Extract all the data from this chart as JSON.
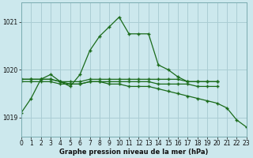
{
  "bg_color": "#cce8ed",
  "grid_color": "#aacdd4",
  "line_color": "#1a6b1a",
  "title": "Graphe pression niveau de la mer (hPa)",
  "xlim": [
    0,
    23
  ],
  "ylim": [
    1018.6,
    1021.4
  ],
  "yticks": [
    1019,
    1020,
    1021
  ],
  "xticks": [
    0,
    1,
    2,
    3,
    4,
    5,
    6,
    7,
    8,
    9,
    10,
    11,
    12,
    13,
    14,
    15,
    16,
    17,
    18,
    19,
    20,
    21,
    22,
    23
  ],
  "series": [
    {
      "x": [
        0,
        1,
        2,
        3,
        4,
        5,
        6,
        7,
        8,
        9,
        10,
        11,
        12,
        13,
        14,
        15,
        16,
        17,
        18,
        19,
        20
      ],
      "y": [
        1019.1,
        1019.4,
        1019.8,
        1019.9,
        1019.75,
        1019.65,
        1019.9,
        1020.4,
        1020.7,
        1020.9,
        1021.1,
        1020.75,
        1020.75,
        1020.75,
        1020.1,
        1020.0,
        1019.85,
        1019.75,
        1019.75,
        1019.75,
        1019.75
      ]
    },
    {
      "x": [
        0,
        1,
        2,
        3,
        4,
        5,
        6,
        7,
        8,
        9,
        10,
        11,
        12,
        13,
        14,
        15,
        16,
        17,
        18,
        19,
        20
      ],
      "y": [
        1019.8,
        1019.8,
        1019.8,
        1019.8,
        1019.75,
        1019.75,
        1019.75,
        1019.8,
        1019.8,
        1019.8,
        1019.8,
        1019.8,
        1019.8,
        1019.8,
        1019.8,
        1019.8,
        1019.8,
        1019.75,
        1019.75,
        1019.75,
        1019.75
      ]
    },
    {
      "x": [
        0,
        1,
        2,
        3,
        4,
        5,
        6,
        7,
        8,
        9,
        10,
        11,
        12,
        13,
        14,
        15,
        16,
        17,
        18,
        19,
        20
      ],
      "y": [
        1019.75,
        1019.75,
        1019.75,
        1019.75,
        1019.7,
        1019.7,
        1019.7,
        1019.75,
        1019.75,
        1019.75,
        1019.75,
        1019.75,
        1019.75,
        1019.75,
        1019.7,
        1019.7,
        1019.7,
        1019.7,
        1019.65,
        1019.65,
        1019.65
      ]
    },
    {
      "x": [
        0,
        1,
        2,
        3,
        4,
        5,
        6,
        7,
        8,
        9,
        10,
        11,
        12,
        13,
        14,
        15,
        16,
        17,
        18,
        19,
        20,
        21,
        22,
        23
      ],
      "y": [
        1019.8,
        1019.8,
        1019.8,
        1019.8,
        1019.75,
        1019.7,
        1019.7,
        1019.75,
        1019.75,
        1019.7,
        1019.7,
        1019.65,
        1019.65,
        1019.65,
        1019.6,
        1019.55,
        1019.5,
        1019.45,
        1019.4,
        1019.35,
        1019.3,
        1019.2,
        1018.95,
        1018.8
      ]
    }
  ]
}
